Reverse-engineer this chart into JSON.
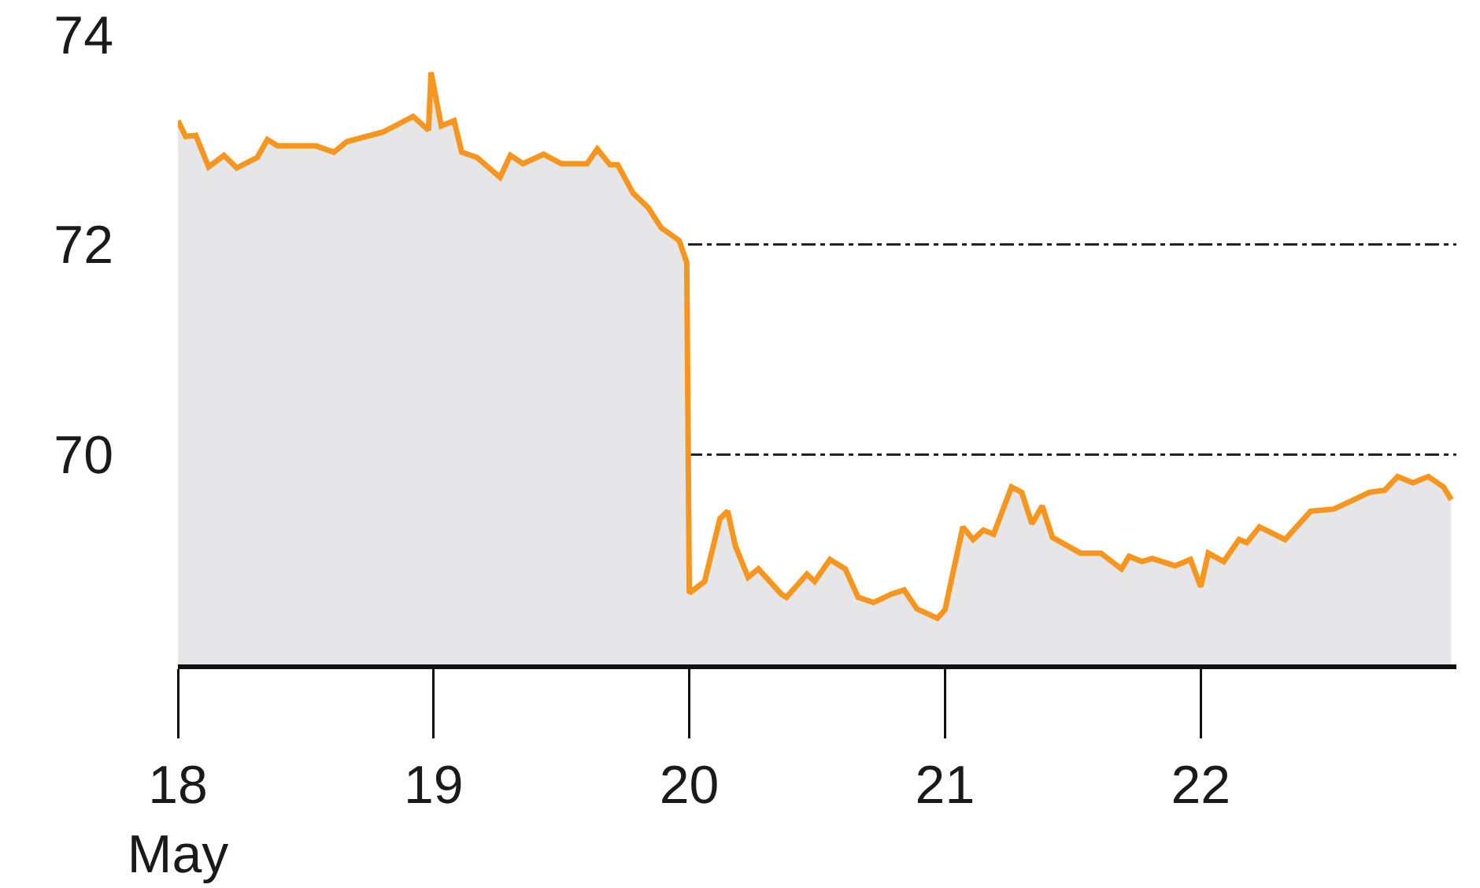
{
  "chart_data": {
    "type": "area",
    "x": [
      18.0,
      18.03,
      18.07,
      18.12,
      18.18,
      18.23,
      18.31,
      18.35,
      18.39,
      18.54,
      18.61,
      18.66,
      18.8,
      18.92,
      18.98,
      18.99,
      19.03,
      19.08,
      19.11,
      19.17,
      19.26,
      19.3,
      19.35,
      19.43,
      19.5,
      19.6,
      19.64,
      19.69,
      19.72,
      19.78,
      19.84,
      19.89,
      19.96,
      19.99,
      20.0,
      20.06,
      20.12,
      20.15,
      20.18,
      20.23,
      20.27,
      20.36,
      20.38,
      20.46,
      20.49,
      20.55,
      20.61,
      20.66,
      20.72,
      20.79,
      20.84,
      20.89,
      20.97,
      21.0,
      21.07,
      21.11,
      21.15,
      21.19,
      21.26,
      21.3,
      21.34,
      21.38,
      21.42,
      21.53,
      21.61,
      21.69,
      21.72,
      21.77,
      21.81,
      21.9,
      21.96,
      22.0,
      22.03,
      22.09,
      22.15,
      22.18,
      22.23,
      22.33,
      22.43,
      22.52,
      22.6,
      22.66,
      22.72,
      22.77,
      22.83,
      22.89,
      22.95,
      22.98
    ],
    "values": [
      73.18,
      73.03,
      73.04,
      72.74,
      72.85,
      72.73,
      72.83,
      73.0,
      72.94,
      72.94,
      72.88,
      72.98,
      73.07,
      73.22,
      73.09,
      73.64,
      73.13,
      73.18,
      72.88,
      72.83,
      72.64,
      72.85,
      72.77,
      72.86,
      72.77,
      72.77,
      72.91,
      72.76,
      72.76,
      72.49,
      72.35,
      72.16,
      72.04,
      71.83,
      68.68,
      68.79,
      69.39,
      69.46,
      69.13,
      68.83,
      68.91,
      68.67,
      68.64,
      68.86,
      68.79,
      69.0,
      68.91,
      68.64,
      68.59,
      68.67,
      68.71,
      68.53,
      68.44,
      68.52,
      69.31,
      69.19,
      69.28,
      69.24,
      69.69,
      69.64,
      69.34,
      69.51,
      69.21,
      69.06,
      69.06,
      68.91,
      69.03,
      68.98,
      69.01,
      68.94,
      69.0,
      68.74,
      69.06,
      68.98,
      69.19,
      69.16,
      69.31,
      69.19,
      69.46,
      69.48,
      69.57,
      69.64,
      69.66,
      69.79,
      69.73,
      69.79,
      69.69,
      69.57
    ],
    "color": "#f7961f",
    "xlim": [
      18,
      23
    ],
    "xticks": [
      {
        "value": 18,
        "label": "18\nMay"
      },
      19,
      20,
      21,
      22
    ],
    "ylim": [
      68,
      74
    ],
    "yticks": [
      70,
      72,
      74
    ],
    "grid": "y"
  }
}
